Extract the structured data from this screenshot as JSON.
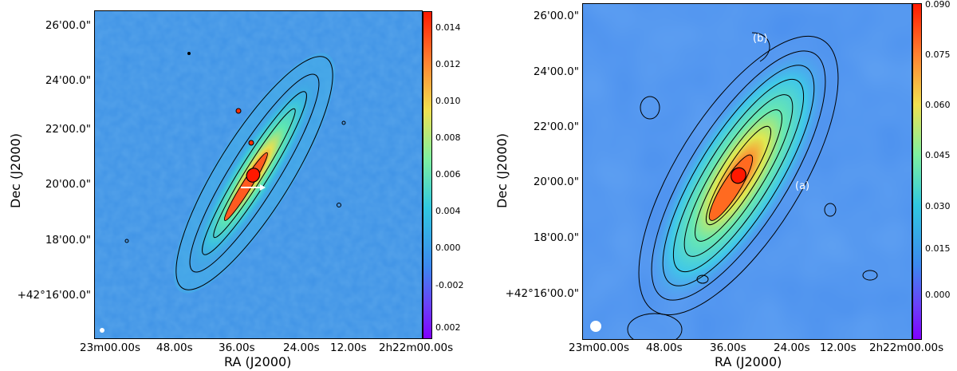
{
  "colors": {
    "background_map": "#3f93e6",
    "colormap": [
      "#7f00ff",
      "#3b82f0",
      "#1ec8d8",
      "#5cf0b0",
      "#c8f060",
      "#ffb040",
      "#ff2000"
    ],
    "contour": "#000000",
    "annotation": "#ffffff"
  },
  "panels": [
    {
      "id": "left",
      "xlabel": "RA (J2000)",
      "ylabel": "Dec (J2000)",
      "ra_ticks": [
        "23m00.00s",
        "48.00s",
        "36.00s",
        "24.00s",
        "12.00s",
        "2h22m00.00s"
      ],
      "dec_ticks": [
        "26'00.0\"",
        "24'00.0\"",
        "22'00.0\"",
        "20'00.0\"",
        "18'00.0\"",
        "+42°16'00.0\""
      ],
      "colorbar_ticks": [
        "0.014",
        "0.012",
        "0.010",
        "0.008",
        "0.006",
        "0.004",
        "0.002",
        "0.000",
        "-0.002"
      ],
      "colorbar_range": [
        -0.003,
        0.015
      ]
    },
    {
      "id": "right",
      "xlabel": "RA (J2000)",
      "ylabel": "Dec (J2000)",
      "ra_ticks": [
        "23m00.00s",
        "48.00s",
        "36.00s",
        "24.00s",
        "12.00s",
        "2h22m00.00s"
      ],
      "dec_ticks": [
        "26'00.0\"",
        "24'00.0\"",
        "22'00.0\"",
        "20'00.0\"",
        "18'00.0\"",
        "+42°16'00.0\""
      ],
      "colorbar_ticks": [
        "0.090",
        "0.075",
        "0.060",
        "0.045",
        "0.030",
        "0.015",
        "0.000"
      ],
      "colorbar_range": [
        -0.01,
        0.09
      ],
      "annotations": [
        "(b)",
        "(a)"
      ]
    }
  ]
}
